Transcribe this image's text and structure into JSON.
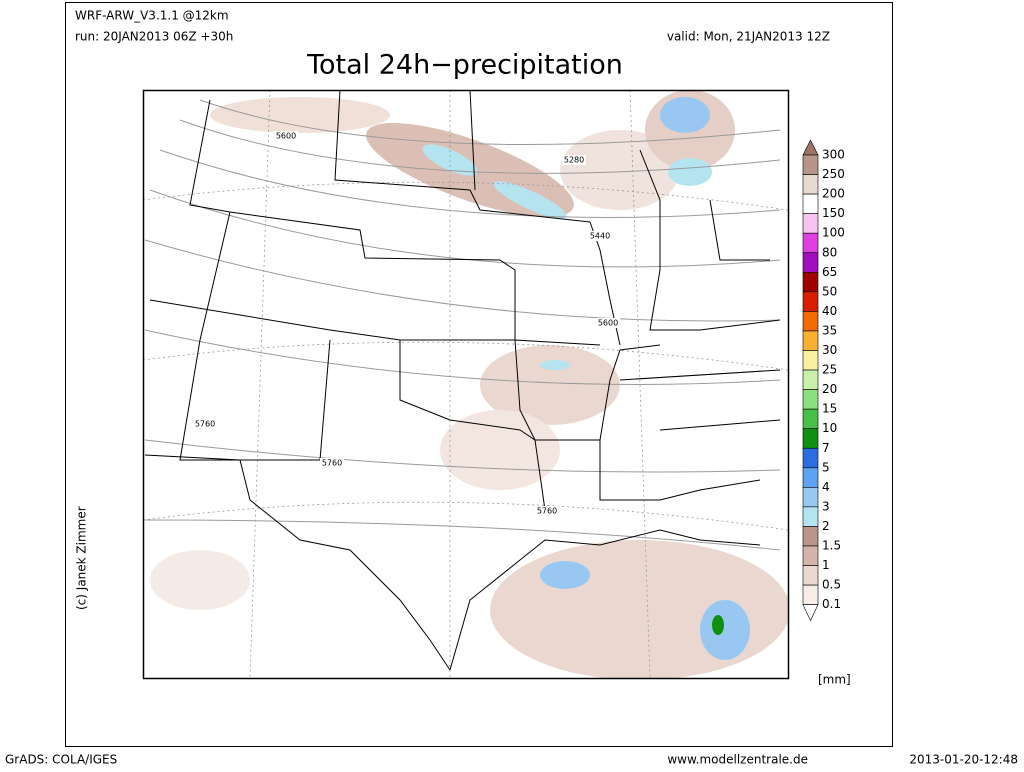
{
  "header": {
    "model": "WRF-ARW_V3.1.1 @12km",
    "run": "run: 20JAN2013 06Z +30h",
    "valid": "valid: Mon, 21JAN2013 12Z"
  },
  "title": "Total 24h−precipitation",
  "copyright": "(c) Janek Zimmer",
  "contour_labels": [
    "5600",
    "5280",
    "5440",
    "5600",
    "5760",
    "5760",
    "5760"
  ],
  "legend": {
    "labels": [
      "300",
      "250",
      "200",
      "150",
      "100",
      "80",
      "65",
      "50",
      "40",
      "35",
      "30",
      "25",
      "20",
      "15",
      "10",
      "7",
      "5",
      "4",
      "3",
      "2",
      "1.5",
      "1",
      "0.5",
      "0.1"
    ],
    "colors": [
      "#9c7466",
      "#b8958a",
      "#e8d8d2",
      "#ffffff",
      "#f6c4f2",
      "#e040e0",
      "#a010c0",
      "#a00000",
      "#d82000",
      "#f06a00",
      "#f8b030",
      "#f8f0a0",
      "#c8f0a8",
      "#8ce07c",
      "#48c048",
      "#109010",
      "#2c6ee0",
      "#5ea2f2",
      "#98c8f2",
      "#b4e4f0",
      "#b8968a",
      "#d4b4aa",
      "#ead8d0",
      "#f8ede8",
      "#ffffff"
    ],
    "unit": "[mm]"
  },
  "footer": {
    "left": "GrADS: COLA/IGES",
    "center": "www.modellzentrale.de",
    "right": "2013-01-20-12:48"
  }
}
